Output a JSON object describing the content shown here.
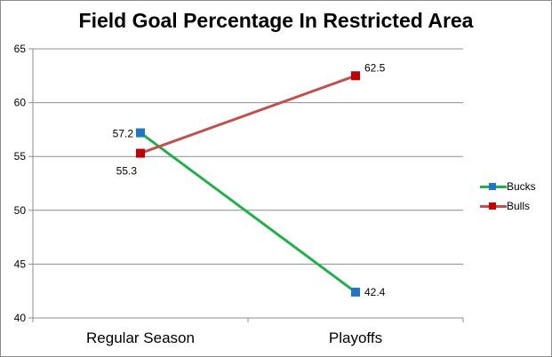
{
  "chart_data": {
    "type": "line",
    "title": "Field Goal Percentage In Restricted Area",
    "categories": [
      "Regular Season",
      "Playoffs"
    ],
    "ylim": [
      40,
      65
    ],
    "yticks": [
      40,
      45,
      50,
      55,
      60,
      65
    ],
    "grid": true,
    "legend_position": "right",
    "series": [
      {
        "name": "Bucks",
        "values": [
          57.2,
          42.4
        ],
        "labels": [
          "57.2",
          "42.4"
        ],
        "color": "#1fb04a",
        "marker_color": "#1f77c4"
      },
      {
        "name": "Bulls",
        "values": [
          55.3,
          62.5
        ],
        "labels": [
          "55.3",
          "62.5"
        ],
        "color": "#c0504d",
        "marker_color": "#c00000"
      }
    ]
  }
}
